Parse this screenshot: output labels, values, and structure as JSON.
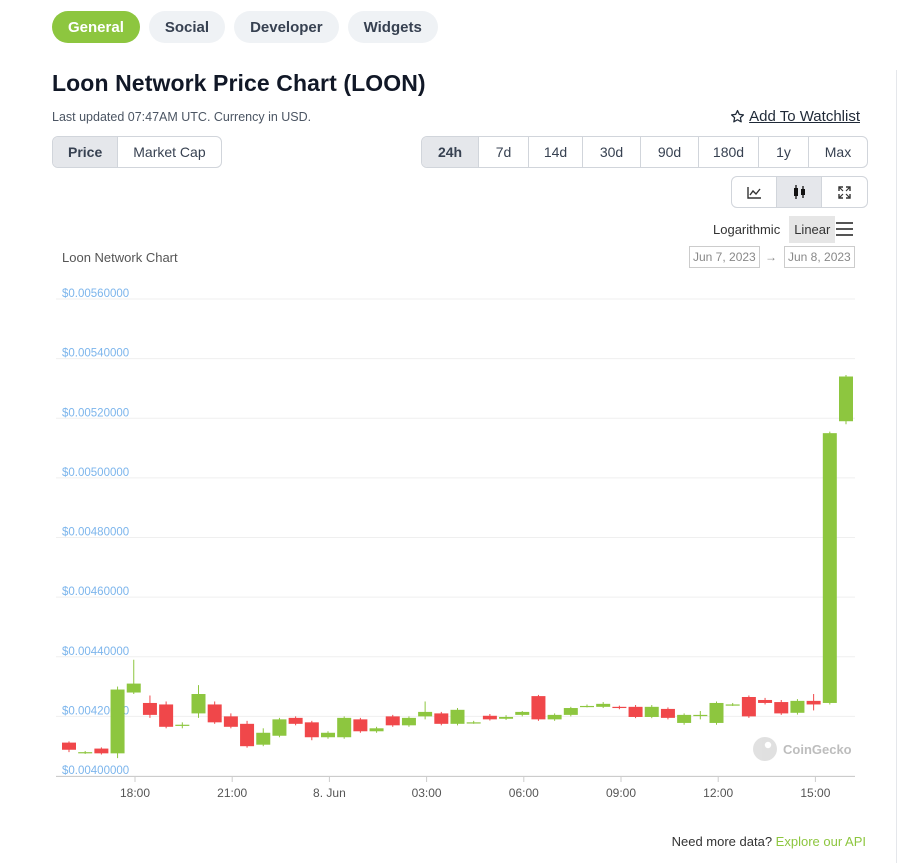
{
  "tabs": [
    "General",
    "Social",
    "Developer",
    "Widgets"
  ],
  "title": "Loon Network Price Chart (LOON)",
  "updated_text": "Last updated 07:47AM UTC. Currency in USD.",
  "watchlist_label": "Add To Watchlist",
  "chart_type_tabs": [
    "Price",
    "Market Cap"
  ],
  "range_tabs": [
    "24h",
    "7d",
    "14d",
    "30d",
    "90d",
    "180d",
    "1y",
    "Max"
  ],
  "scale": {
    "log_label": "Logarithmic",
    "linear_label": "Linear"
  },
  "chart_label": "Loon Network Chart",
  "date_from": "Jun 7, 2023",
  "date_to": "Jun 8, 2023",
  "date_arrow": "→",
  "watermark": "CoinGecko",
  "footer": {
    "text": "Need more data? ",
    "link": "Explore our API"
  },
  "colors": {
    "accent": "#8dc63f",
    "up": "#8dc63f",
    "down": "#f0474a",
    "axis_label": "#7cb5ec"
  },
  "chart_data": {
    "type": "candlestick",
    "title": "Loon Network Chart",
    "ylim": [
      0.004,
      0.0056
    ],
    "y_ticks": [
      "$0.00400000",
      "$0.00420000",
      "$0.00440000",
      "$0.00460000",
      "$0.00480000",
      "$0.00500000",
      "$0.00520000",
      "$0.00540000",
      "$0.00560000"
    ],
    "x_ticks": [
      "18:00",
      "21:00",
      "8. Jun",
      "03:00",
      "06:00",
      "09:00",
      "12:00",
      "15:00"
    ],
    "candles": [
      {
        "o": 0.004112,
        "c": 0.004088,
        "h": 0.004116,
        "l": 0.00408
      },
      {
        "o": 0.00408,
        "c": 0.00408,
        "h": 0.004084,
        "l": 0.004074
      },
      {
        "o": 0.004092,
        "c": 0.004076,
        "h": 0.004096,
        "l": 0.004072
      },
      {
        "o": 0.004076,
        "c": 0.00429,
        "h": 0.0043,
        "l": 0.00406
      },
      {
        "o": 0.00428,
        "c": 0.00431,
        "h": 0.00439,
        "l": 0.004275
      },
      {
        "o": 0.004245,
        "c": 0.004205,
        "h": 0.00427,
        "l": 0.004195
      },
      {
        "o": 0.00424,
        "c": 0.004165,
        "h": 0.00425,
        "l": 0.00416
      },
      {
        "o": 0.004168,
        "c": 0.004172,
        "h": 0.00418,
        "l": 0.00416
      },
      {
        "o": 0.00421,
        "c": 0.004275,
        "h": 0.004305,
        "l": 0.004195
      },
      {
        "o": 0.00424,
        "c": 0.00418,
        "h": 0.00425,
        "l": 0.004175
      },
      {
        "o": 0.0042,
        "c": 0.004165,
        "h": 0.00421,
        "l": 0.00416
      },
      {
        "o": 0.004175,
        "c": 0.0041,
        "h": 0.004185,
        "l": 0.004095
      },
      {
        "o": 0.004105,
        "c": 0.004145,
        "h": 0.00416,
        "l": 0.0041
      },
      {
        "o": 0.004135,
        "c": 0.00419,
        "h": 0.004195,
        "l": 0.00413
      },
      {
        "o": 0.004195,
        "c": 0.004175,
        "h": 0.0042,
        "l": 0.00417
      },
      {
        "o": 0.00418,
        "c": 0.00413,
        "h": 0.004185,
        "l": 0.00412
      },
      {
        "o": 0.00413,
        "c": 0.004145,
        "h": 0.00415,
        "l": 0.004125
      },
      {
        "o": 0.00413,
        "c": 0.004195,
        "h": 0.0042,
        "l": 0.004125
      },
      {
        "o": 0.00419,
        "c": 0.00415,
        "h": 0.004195,
        "l": 0.004145
      },
      {
        "o": 0.00415,
        "c": 0.00416,
        "h": 0.004165,
        "l": 0.004145
      },
      {
        "o": 0.0042,
        "c": 0.00417,
        "h": 0.004205,
        "l": 0.004165
      },
      {
        "o": 0.00417,
        "c": 0.004195,
        "h": 0.0042,
        "l": 0.004165
      },
      {
        "o": 0.0042,
        "c": 0.004215,
        "h": 0.00425,
        "l": 0.00419
      },
      {
        "o": 0.00421,
        "c": 0.004175,
        "h": 0.004215,
        "l": 0.00417
      },
      {
        "o": 0.004175,
        "c": 0.004222,
        "h": 0.004228,
        "l": 0.00417
      },
      {
        "o": 0.00418,
        "c": 0.00418,
        "h": 0.004185,
        "l": 0.004175
      },
      {
        "o": 0.004202,
        "c": 0.00419,
        "h": 0.004208,
        "l": 0.004186
      },
      {
        "o": 0.004192,
        "c": 0.004198,
        "h": 0.004204,
        "l": 0.004188
      },
      {
        "o": 0.004205,
        "c": 0.004215,
        "h": 0.004218,
        "l": 0.0042
      },
      {
        "o": 0.004268,
        "c": 0.00419,
        "h": 0.004272,
        "l": 0.004185
      },
      {
        "o": 0.00419,
        "c": 0.004205,
        "h": 0.00421,
        "l": 0.004185
      },
      {
        "o": 0.004205,
        "c": 0.004228,
        "h": 0.004232,
        "l": 0.0042
      },
      {
        "o": 0.004235,
        "c": 0.004235,
        "h": 0.00424,
        "l": 0.00423
      },
      {
        "o": 0.004232,
        "c": 0.004242,
        "h": 0.004248,
        "l": 0.004228
      },
      {
        "o": 0.004232,
        "c": 0.004228,
        "h": 0.004236,
        "l": 0.004224
      },
      {
        "o": 0.004232,
        "c": 0.004198,
        "h": 0.004238,
        "l": 0.004194
      },
      {
        "o": 0.004198,
        "c": 0.004232,
        "h": 0.004238,
        "l": 0.004194
      },
      {
        "o": 0.004225,
        "c": 0.004195,
        "h": 0.00423,
        "l": 0.00419
      },
      {
        "o": 0.004178,
        "c": 0.004205,
        "h": 0.00421,
        "l": 0.004172
      },
      {
        "o": 0.004205,
        "c": 0.004205,
        "h": 0.004218,
        "l": 0.00419
      },
      {
        "o": 0.004178,
        "c": 0.004245,
        "h": 0.00425,
        "l": 0.004172
      },
      {
        "o": 0.00424,
        "c": 0.00424,
        "h": 0.004245,
        "l": 0.004235
      },
      {
        "o": 0.004265,
        "c": 0.0042,
        "h": 0.00427,
        "l": 0.004195
      },
      {
        "o": 0.004255,
        "c": 0.004245,
        "h": 0.004262,
        "l": 0.00424
      },
      {
        "o": 0.004248,
        "c": 0.00421,
        "h": 0.004255,
        "l": 0.004205
      },
      {
        "o": 0.004212,
        "c": 0.004252,
        "h": 0.004258,
        "l": 0.004206
      },
      {
        "o": 0.004252,
        "c": 0.00424,
        "h": 0.004275,
        "l": 0.00422
      },
      {
        "o": 0.004245,
        "c": 0.00515,
        "h": 0.005155,
        "l": 0.00424
      },
      {
        "o": 0.00519,
        "c": 0.00534,
        "h": 0.005345,
        "l": 0.00518
      }
    ]
  }
}
